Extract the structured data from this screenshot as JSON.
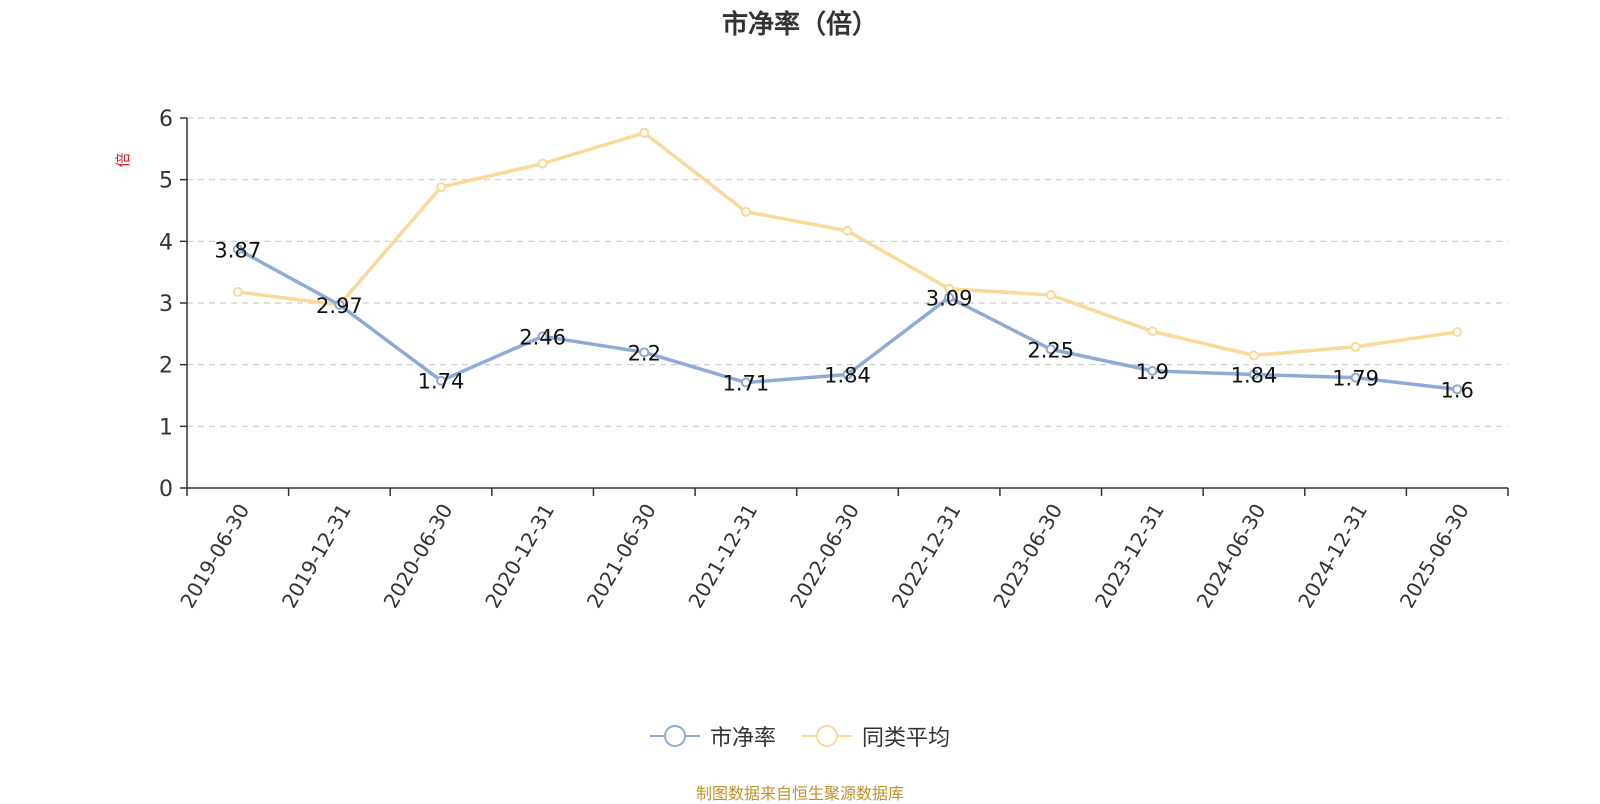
{
  "chart_data": {
    "type": "line",
    "title": "市净率（倍）",
    "ylabel": "倍",
    "xlabel": "",
    "ylim": [
      0,
      6
    ],
    "yticks": [
      0,
      1,
      2,
      3,
      4,
      5,
      6
    ],
    "grid": true,
    "legend_position": "bottom",
    "categories": [
      "2019-06-30",
      "2019-12-31",
      "2020-06-30",
      "2020-12-31",
      "2021-06-30",
      "2021-12-31",
      "2022-06-30",
      "2022-12-31",
      "2023-06-30",
      "2023-12-31",
      "2024-06-30",
      "2024-12-31",
      "2025-06-30"
    ],
    "series": [
      {
        "name": "市净率",
        "color": "#8eabd6",
        "show_labels": true,
        "values": [
          3.87,
          2.97,
          1.74,
          2.46,
          2.2,
          1.71,
          1.84,
          3.09,
          2.25,
          1.9,
          1.84,
          1.79,
          1.6
        ]
      },
      {
        "name": "同类平均",
        "color": "#fad99a",
        "show_labels": false,
        "values": [
          3.18,
          2.97,
          4.88,
          5.26,
          5.76,
          4.48,
          4.17,
          3.23,
          3.13,
          2.54,
          2.15,
          2.29,
          2.53
        ]
      }
    ]
  },
  "footer": {
    "source": "制图数据来自恒生聚源数据库"
  },
  "colors": {
    "axis": "#333333",
    "grid": "#cccccc",
    "ylabel": "#e02020",
    "source": "#c0902a"
  }
}
